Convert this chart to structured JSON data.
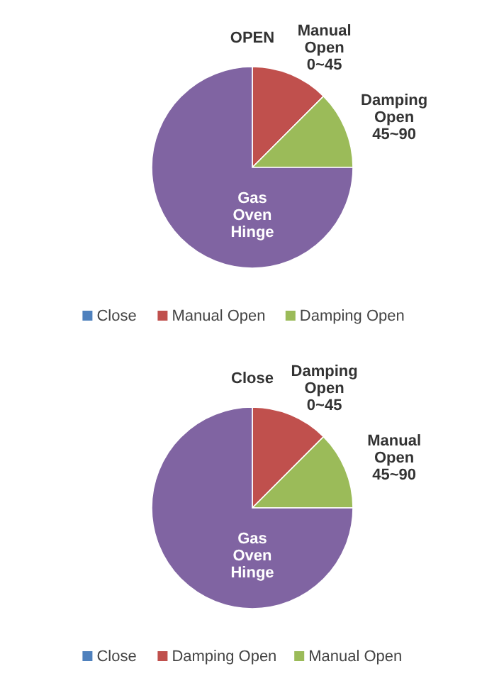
{
  "chart_data": [
    {
      "type": "pie",
      "categories": [
        "Close",
        "Manual Open",
        "Damping Open",
        null
      ],
      "values": [
        0,
        12.5,
        12.5,
        75
      ],
      "colors": [
        "#4f81bd",
        "#c0504d",
        "#9bbb59",
        "#8064a2"
      ],
      "annotations": [
        "OPEN",
        "Manual Open 0~45",
        "Damping Open 45~90",
        "Gas Oven Hinge"
      ],
      "legend": "bottom"
    },
    {
      "type": "pie",
      "categories": [
        "Close",
        "Damping Open",
        "Manual Open",
        null
      ],
      "values": [
        0,
        12.5,
        12.5,
        75
      ],
      "colors": [
        "#4f81bd",
        "#c0504d",
        "#9bbb59",
        "#8064a2"
      ],
      "annotations": [
        "Close",
        "Damping Open 0~45",
        "Manual Open 45~90",
        "Gas Oven Hinge"
      ],
      "legend": "bottom"
    }
  ]
}
